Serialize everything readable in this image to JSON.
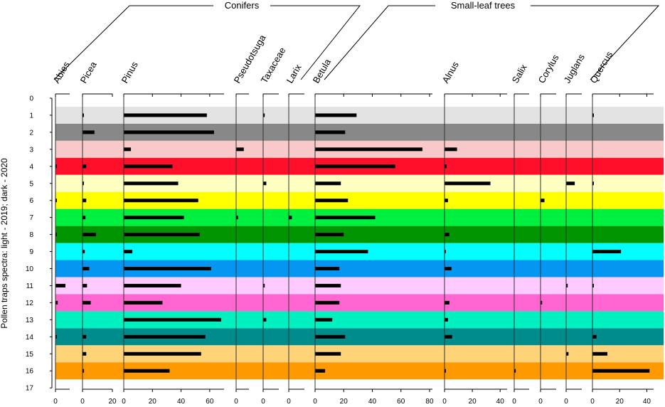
{
  "chart_data": {
    "type": "bar",
    "orientation": "horizontal",
    "ylabel": "Pollen traps spectra: light - 2019; dark - 2020",
    "yticks": [
      "0",
      "1",
      "2",
      "3",
      "4",
      "5",
      "6",
      "7",
      "8",
      "9",
      "10",
      "11",
      "12",
      "13",
      "14",
      "15",
      "16",
      "17"
    ],
    "ylim": [
      0,
      17
    ],
    "groups": [
      {
        "name": "Conifers",
        "taxa": [
          "Abies",
          "Picea",
          "Pinus",
          "Pseudotsuga",
          "Taxaceae",
          "Larix"
        ]
      },
      {
        "name": "Small-leaf trees",
        "taxa": [
          "Betula",
          "Alnus",
          "Salix",
          "Corylus",
          "Juglans",
          "Quercus"
        ]
      }
    ],
    "band_colors": [
      "#e3e3e3",
      "#888888",
      "#f7c9c9",
      "#ff0f2a",
      "#ffffc2",
      "#ffff00",
      "#00f040",
      "#009400",
      "#00ffff",
      "#0596f2",
      "#ffcaff",
      "#ff66d2",
      "#00f0c0",
      "#008c8c",
      "#ffd378",
      "#ff9900"
    ],
    "taxa": [
      {
        "name": "Abies",
        "xlim": [
          0,
          5
        ],
        "ticks": [
          "0"
        ],
        "values": [
          0,
          0,
          0,
          0,
          0.2,
          0,
          0.3,
          0,
          0.3,
          0,
          0,
          3.5,
          0.8,
          0,
          0.2,
          0,
          0
        ]
      },
      {
        "name": "Picea",
        "xlim": [
          0,
          20
        ],
        "ticks": [
          "0",
          "20"
        ],
        "values": [
          0,
          0.3,
          8,
          0,
          2.5,
          0.3,
          2.5,
          2,
          9,
          1.5,
          4.5,
          3,
          5.5,
          0,
          2.5,
          2.5,
          1
        ]
      },
      {
        "name": "Pinus",
        "xlim": [
          0,
          70
        ],
        "ticks": [
          "0",
          "20",
          "40",
          "60"
        ],
        "values": [
          0,
          58,
          63,
          5,
          34,
          38,
          52,
          42,
          53,
          6,
          61,
          40,
          27,
          68,
          57,
          54,
          32
        ]
      },
      {
        "name": "Pseudotsuga",
        "xlim": [
          0,
          10
        ],
        "ticks": [
          "0"
        ],
        "values": [
          0,
          0,
          0,
          6,
          0,
          0,
          0,
          1.5,
          0,
          0,
          0,
          0,
          0,
          0,
          0,
          0,
          0
        ]
      },
      {
        "name": "Taxaceae",
        "xlim": [
          0,
          10
        ],
        "ticks": [
          "0"
        ],
        "values": [
          0,
          1,
          0,
          0,
          0,
          2,
          0,
          0,
          0,
          0,
          0,
          1,
          0,
          2,
          0,
          0,
          0
        ]
      },
      {
        "name": "Larix",
        "xlim": [
          0,
          10
        ],
        "ticks": [
          "0"
        ],
        "values": [
          0,
          0,
          0,
          0,
          0,
          0,
          0,
          2,
          0,
          0,
          0,
          0,
          0,
          0,
          0,
          0,
          0
        ]
      },
      {
        "name": "Betula",
        "xlim": [
          0,
          82
        ],
        "ticks": [
          "0",
          "20",
          "40",
          "60",
          "80"
        ],
        "values": [
          0,
          29,
          21,
          75,
          56,
          18,
          23,
          42,
          20,
          37,
          17,
          18,
          17,
          12,
          21,
          18,
          7
        ]
      },
      {
        "name": "Alnus",
        "xlim": [
          0,
          45
        ],
        "ticks": [
          "0",
          "20",
          "40"
        ],
        "values": [
          0,
          0,
          0,
          9,
          1.5,
          33,
          2.5,
          0,
          3.5,
          1,
          5,
          0,
          3.5,
          2.5,
          5.5,
          0,
          0.2
        ]
      },
      {
        "name": "Salix",
        "xlim": [
          0,
          10
        ],
        "ticks": [
          "0"
        ],
        "values": [
          0,
          0,
          0,
          0,
          0,
          0,
          0,
          0,
          0,
          0,
          0,
          0,
          0,
          0,
          0,
          0,
          1
        ]
      },
      {
        "name": "Corylus",
        "xlim": [
          0,
          10
        ],
        "ticks": [
          "0"
        ],
        "values": [
          0,
          0,
          0,
          0,
          0,
          0,
          2.5,
          0,
          0,
          0,
          0,
          0,
          1,
          0,
          0,
          0,
          0
        ]
      },
      {
        "name": "Juglans",
        "xlim": [
          0,
          10
        ],
        "ticks": [
          "0"
        ],
        "values": [
          0,
          0,
          0,
          0,
          0,
          5.5,
          0,
          0,
          0,
          0,
          0,
          1,
          0,
          0,
          0,
          1.5,
          0
        ]
      },
      {
        "name": "Quercus",
        "xlim": [
          0,
          45
        ],
        "ticks": [
          "0",
          "20",
          "40"
        ],
        "values": [
          0,
          1,
          0,
          0,
          0,
          1,
          0,
          0,
          0,
          21,
          0,
          0.5,
          0,
          0,
          3,
          11,
          42
        ]
      }
    ]
  }
}
